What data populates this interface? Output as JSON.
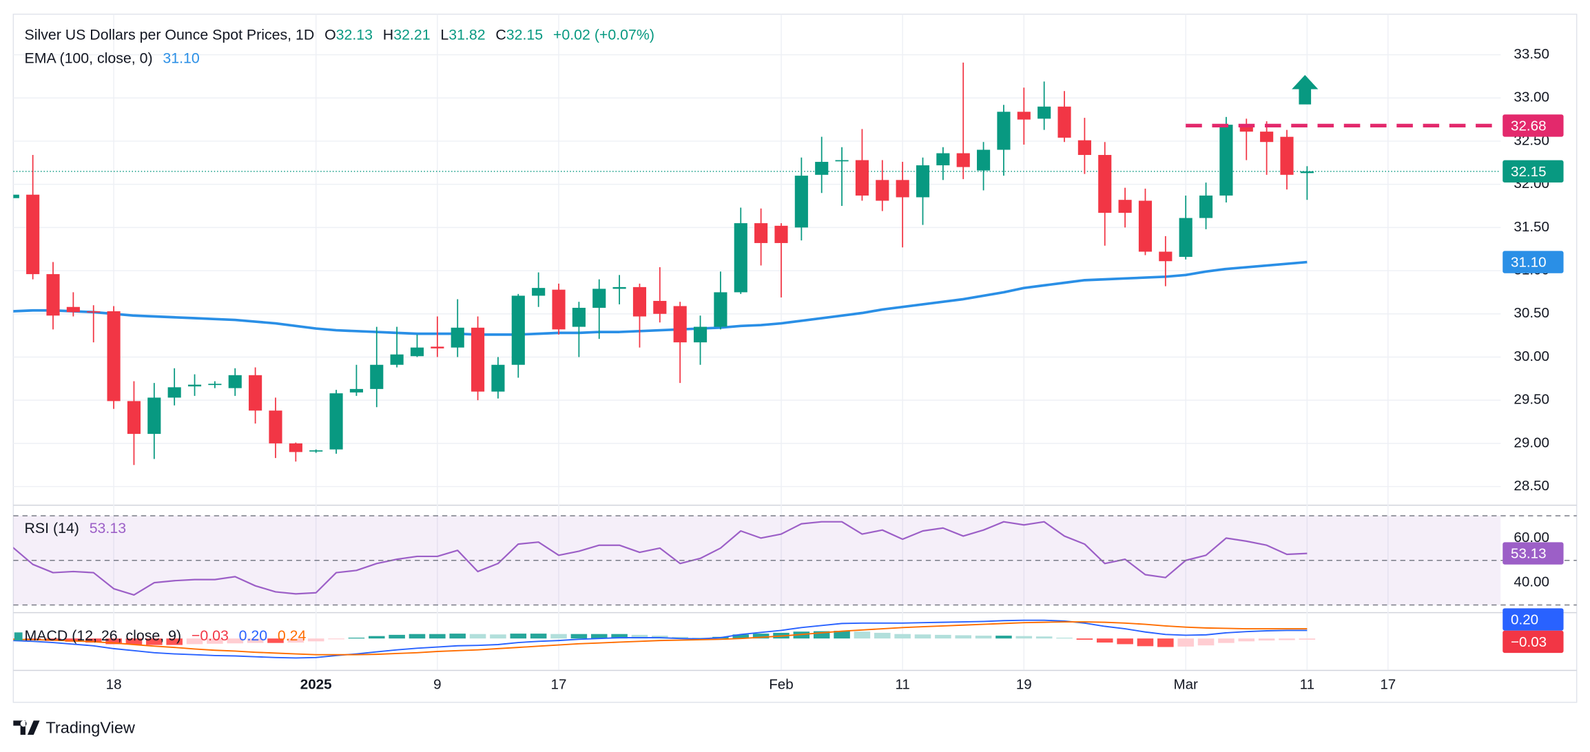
{
  "header": {
    "title": "Silver US Dollars per Ounce Spot Prices, 1D",
    "ohlc_keys": [
      "O",
      "H",
      "L",
      "C"
    ],
    "change": "+0.02 (+0.07%)"
  },
  "footer": {
    "brand": "TradingView"
  },
  "chart_data": [
    {
      "type": "candlestick",
      "categories": [
        null,
        null,
        null,
        null,
        null,
        "18",
        null,
        null,
        null,
        null,
        null,
        null,
        null,
        null,
        null,
        "2025",
        null,
        null,
        null,
        null,
        null,
        "9",
        null,
        null,
        null,
        null,
        null,
        "17",
        null,
        null,
        null,
        null,
        null,
        null,
        null,
        null,
        null,
        null,
        "Feb",
        null,
        null,
        null,
        null,
        null,
        "11",
        null,
        null,
        null,
        null,
        null,
        "19",
        null,
        null,
        null,
        null,
        null,
        null,
        null,
        "Mar",
        null,
        null,
        null,
        null,
        null,
        "11",
        null,
        null,
        null,
        "17"
      ],
      "open": [
        31.84,
        31.88,
        30.96,
        30.58,
        30.53,
        30.53,
        29.49,
        29.11,
        29.53,
        29.66,
        29.68,
        29.64,
        29.79,
        29.38,
        29.0,
        28.91,
        28.93,
        29.59,
        29.63,
        29.91,
        30.01,
        30.12,
        30.11,
        30.34,
        29.6,
        29.91,
        30.71,
        30.78,
        30.35,
        30.57,
        30.79,
        30.81,
        30.65,
        30.59,
        30.17,
        30.35,
        30.75,
        31.55,
        31.52,
        31.5,
        32.11,
        32.27,
        32.28,
        32.05,
        32.05,
        31.85,
        32.22,
        32.36,
        32.16,
        32.4,
        32.84,
        32.76,
        32.9,
        32.51,
        32.34,
        31.82,
        31.81,
        31.22,
        31.16,
        31.61,
        31.87,
        32.69,
        32.61,
        32.55,
        32.13,
        null,
        null,
        null,
        null
      ],
      "high": [
        31.88,
        32.34,
        31.1,
        30.75,
        30.6,
        30.59,
        29.72,
        29.7,
        29.87,
        29.8,
        29.72,
        29.87,
        29.88,
        29.53,
        29.01,
        28.93,
        29.62,
        29.91,
        30.35,
        30.35,
        30.26,
        30.47,
        30.67,
        30.47,
        30.0,
        30.73,
        30.98,
        30.85,
        30.64,
        30.9,
        30.95,
        30.85,
        31.04,
        30.64,
        30.48,
        30.99,
        31.73,
        31.72,
        31.55,
        32.31,
        32.55,
        32.43,
        32.64,
        32.28,
        32.26,
        32.31,
        32.43,
        33.41,
        32.49,
        32.92,
        33.12,
        33.19,
        33.08,
        32.77,
        32.49,
        31.96,
        31.95,
        31.4,
        31.87,
        32.02,
        32.78,
        32.76,
        32.73,
        32.63,
        32.21,
        null,
        null,
        null,
        null
      ],
      "low": [
        31.82,
        30.9,
        30.32,
        30.47,
        30.17,
        29.4,
        28.75,
        28.82,
        29.44,
        29.55,
        29.64,
        29.55,
        29.23,
        28.83,
        28.79,
        28.89,
        28.88,
        29.55,
        29.42,
        29.88,
        30.0,
        30.0,
        30.0,
        29.5,
        29.52,
        29.76,
        30.58,
        30.26,
        30.0,
        30.21,
        30.61,
        30.11,
        30.4,
        29.7,
        29.91,
        30.32,
        30.73,
        31.06,
        30.69,
        31.35,
        31.9,
        31.75,
        31.81,
        31.69,
        31.27,
        31.53,
        32.05,
        32.06,
        31.93,
        32.1,
        32.46,
        32.63,
        32.49,
        32.12,
        31.29,
        31.5,
        31.18,
        30.82,
        31.13,
        31.48,
        31.79,
        32.28,
        32.11,
        31.94,
        31.82,
        null,
        null,
        null,
        null
      ],
      "close": [
        31.88,
        30.96,
        30.48,
        30.52,
        30.52,
        29.49,
        29.11,
        29.53,
        29.65,
        29.68,
        29.69,
        29.79,
        29.38,
        29.0,
        28.9,
        28.92,
        29.58,
        29.63,
        29.91,
        30.03,
        30.11,
        30.1,
        30.34,
        29.6,
        29.91,
        30.71,
        30.8,
        30.32,
        30.57,
        30.79,
        30.81,
        30.47,
        30.5,
        30.17,
        30.35,
        30.75,
        31.55,
        31.32,
        31.32,
        32.1,
        32.26,
        32.28,
        31.87,
        31.81,
        31.85,
        32.22,
        32.36,
        32.2,
        32.4,
        32.84,
        32.75,
        32.9,
        32.54,
        32.34,
        31.67,
        31.67,
        31.22,
        31.11,
        31.61,
        31.87,
        32.69,
        32.61,
        32.49,
        32.11,
        32.15,
        null,
        null,
        null,
        null
      ],
      "up_color": "#089981",
      "down_color": "#f23645",
      "ylim": [
        28.29,
        33.97
      ],
      "yticks": [
        {
          "value": 33.5,
          "label": "33.50"
        },
        {
          "value": 33.0,
          "label": "33.00"
        },
        {
          "value": 32.5,
          "label": "32.50"
        },
        {
          "value": 32.0,
          "label": "32.00"
        },
        {
          "value": 31.5,
          "label": "31.50"
        },
        {
          "value": 31.0,
          "label": "31.00"
        },
        {
          "value": 30.5,
          "label": "30.50"
        },
        {
          "value": 30.0,
          "label": "30.00"
        },
        {
          "value": 29.5,
          "label": "29.50"
        },
        {
          "value": 29.0,
          "label": "29.00"
        },
        {
          "value": 28.5,
          "label": "28.50"
        }
      ],
      "grid": true,
      "series": [
        {
          "name": "EMA (100, close, 0)",
          "color": "#2a8fe6",
          "last_label": "31.10",
          "values": [
            30.53,
            30.54,
            30.54,
            30.53,
            30.52,
            30.5,
            30.48,
            30.47,
            30.46,
            30.45,
            30.44,
            30.43,
            30.41,
            30.39,
            30.36,
            30.33,
            30.31,
            30.3,
            30.29,
            30.28,
            30.27,
            30.27,
            30.27,
            30.26,
            30.26,
            30.26,
            30.27,
            30.28,
            30.28,
            30.29,
            30.29,
            30.3,
            30.31,
            30.32,
            30.33,
            30.34,
            30.36,
            30.37,
            30.39,
            30.42,
            30.45,
            30.48,
            30.51,
            30.55,
            30.58,
            30.61,
            30.64,
            30.67,
            30.71,
            30.75,
            30.8,
            30.83,
            30.86,
            30.89,
            30.9,
            30.91,
            30.92,
            30.93,
            30.95,
            30.99,
            31.02,
            31.04,
            31.06,
            31.08,
            31.1,
            null,
            null,
            null,
            null
          ]
        }
      ],
      "resistance": {
        "value": 32.68,
        "color": "#e3296c"
      }
    },
    {
      "type": "line",
      "name": "RSI (14)",
      "color": "#9c5fc7",
      "values": [
        55.9,
        48.2,
        44.5,
        45.0,
        44.5,
        37.3,
        34.5,
        40.0,
        40.9,
        41.4,
        41.4,
        42.7,
        38.6,
        35.9,
        35.0,
        35.5,
        44.5,
        45.5,
        48.6,
        50.5,
        51.8,
        51.8,
        54.5,
        45.0,
        48.6,
        57.3,
        58.2,
        52.3,
        54.1,
        56.8,
        56.8,
        53.6,
        55.5,
        48.6,
        50.9,
        55.5,
        63.2,
        60.0,
        61.8,
        66.4,
        67.3,
        67.3,
        61.8,
        63.6,
        59.5,
        63.2,
        64.5,
        60.9,
        63.6,
        67.3,
        65.9,
        67.3,
        60.9,
        57.3,
        48.6,
        50.5,
        43.6,
        42.3,
        50.0,
        52.3,
        60.0,
        58.6,
        56.8,
        52.7,
        53.13,
        null,
        null,
        null,
        null
      ],
      "ylim": [
        26.8,
        74.5
      ],
      "yticks": [
        {
          "value": 60,
          "label": "60.00"
        },
        {
          "value": 40,
          "label": "40.00"
        }
      ],
      "bands": [
        70,
        50,
        30
      ]
    },
    {
      "type": "macd",
      "name": "MACD (12, 26, close, 9)",
      "last_labels": [
        "−0.03",
        "0.20",
        "0.24"
      ],
      "ylim": [
        -0.775,
        0.625
      ],
      "histogram": [
        -0.03,
        -0.04,
        -0.06,
        -0.08,
        -0.1,
        -0.14,
        -0.15,
        -0.16,
        -0.16,
        -0.14,
        -0.13,
        -0.12,
        -0.11,
        -0.11,
        -0.1,
        -0.07,
        -0.02,
        0.02,
        0.06,
        0.09,
        0.11,
        0.11,
        0.12,
        0.11,
        0.1,
        0.12,
        0.12,
        0.11,
        0.11,
        0.11,
        0.11,
        0.09,
        0.07,
        0.04,
        0.02,
        0.04,
        0.1,
        0.12,
        0.14,
        0.17,
        0.18,
        0.19,
        0.17,
        0.14,
        0.11,
        0.1,
        0.09,
        0.08,
        0.07,
        0.07,
        0.06,
        0.05,
        0.02,
        -0.03,
        -0.1,
        -0.14,
        -0.19,
        -0.21,
        -0.2,
        -0.17,
        -0.11,
        -0.07,
        -0.05,
        -0.04,
        -0.03,
        null,
        null,
        null,
        null
      ],
      "hist_colors": [
        "#26a69a",
        "#b2dfdb",
        "#ff5252",
        "#ffcdd2"
      ],
      "macd": {
        "color": "#2962ff",
        "values": [
          -0.05,
          -0.07,
          -0.1,
          -0.14,
          -0.18,
          -0.25,
          -0.3,
          -0.35,
          -0.38,
          -0.4,
          -0.42,
          -0.43,
          -0.45,
          -0.47,
          -0.48,
          -0.47,
          -0.42,
          -0.38,
          -0.33,
          -0.28,
          -0.24,
          -0.21,
          -0.18,
          -0.17,
          -0.15,
          -0.1,
          -0.07,
          -0.05,
          -0.02,
          0.0,
          0.02,
          0.02,
          0.02,
          0.0,
          -0.01,
          0.02,
          0.1,
          0.15,
          0.2,
          0.27,
          0.32,
          0.37,
          0.38,
          0.38,
          0.38,
          0.39,
          0.4,
          0.41,
          0.42,
          0.44,
          0.45,
          0.45,
          0.43,
          0.38,
          0.3,
          0.24,
          0.16,
          0.1,
          0.08,
          0.09,
          0.14,
          0.17,
          0.19,
          0.2,
          0.2,
          null,
          null,
          null,
          null
        ]
      },
      "signal": {
        "color": "#ff6d00",
        "values": [
          -0.02,
          -0.03,
          -0.04,
          -0.06,
          -0.08,
          -0.11,
          -0.15,
          -0.19,
          -0.22,
          -0.26,
          -0.29,
          -0.31,
          -0.34,
          -0.36,
          -0.38,
          -0.4,
          -0.4,
          -0.4,
          -0.39,
          -0.37,
          -0.35,
          -0.32,
          -0.3,
          -0.28,
          -0.25,
          -0.22,
          -0.19,
          -0.16,
          -0.13,
          -0.11,
          -0.09,
          -0.07,
          -0.05,
          -0.04,
          -0.03,
          -0.02,
          0.0,
          0.03,
          0.06,
          0.1,
          0.14,
          0.18,
          0.21,
          0.24,
          0.27,
          0.29,
          0.31,
          0.33,
          0.35,
          0.37,
          0.39,
          0.4,
          0.41,
          0.41,
          0.4,
          0.38,
          0.35,
          0.31,
          0.28,
          0.26,
          0.25,
          0.24,
          0.24,
          0.24,
          0.24,
          null,
          null,
          null,
          null
        ]
      }
    }
  ]
}
